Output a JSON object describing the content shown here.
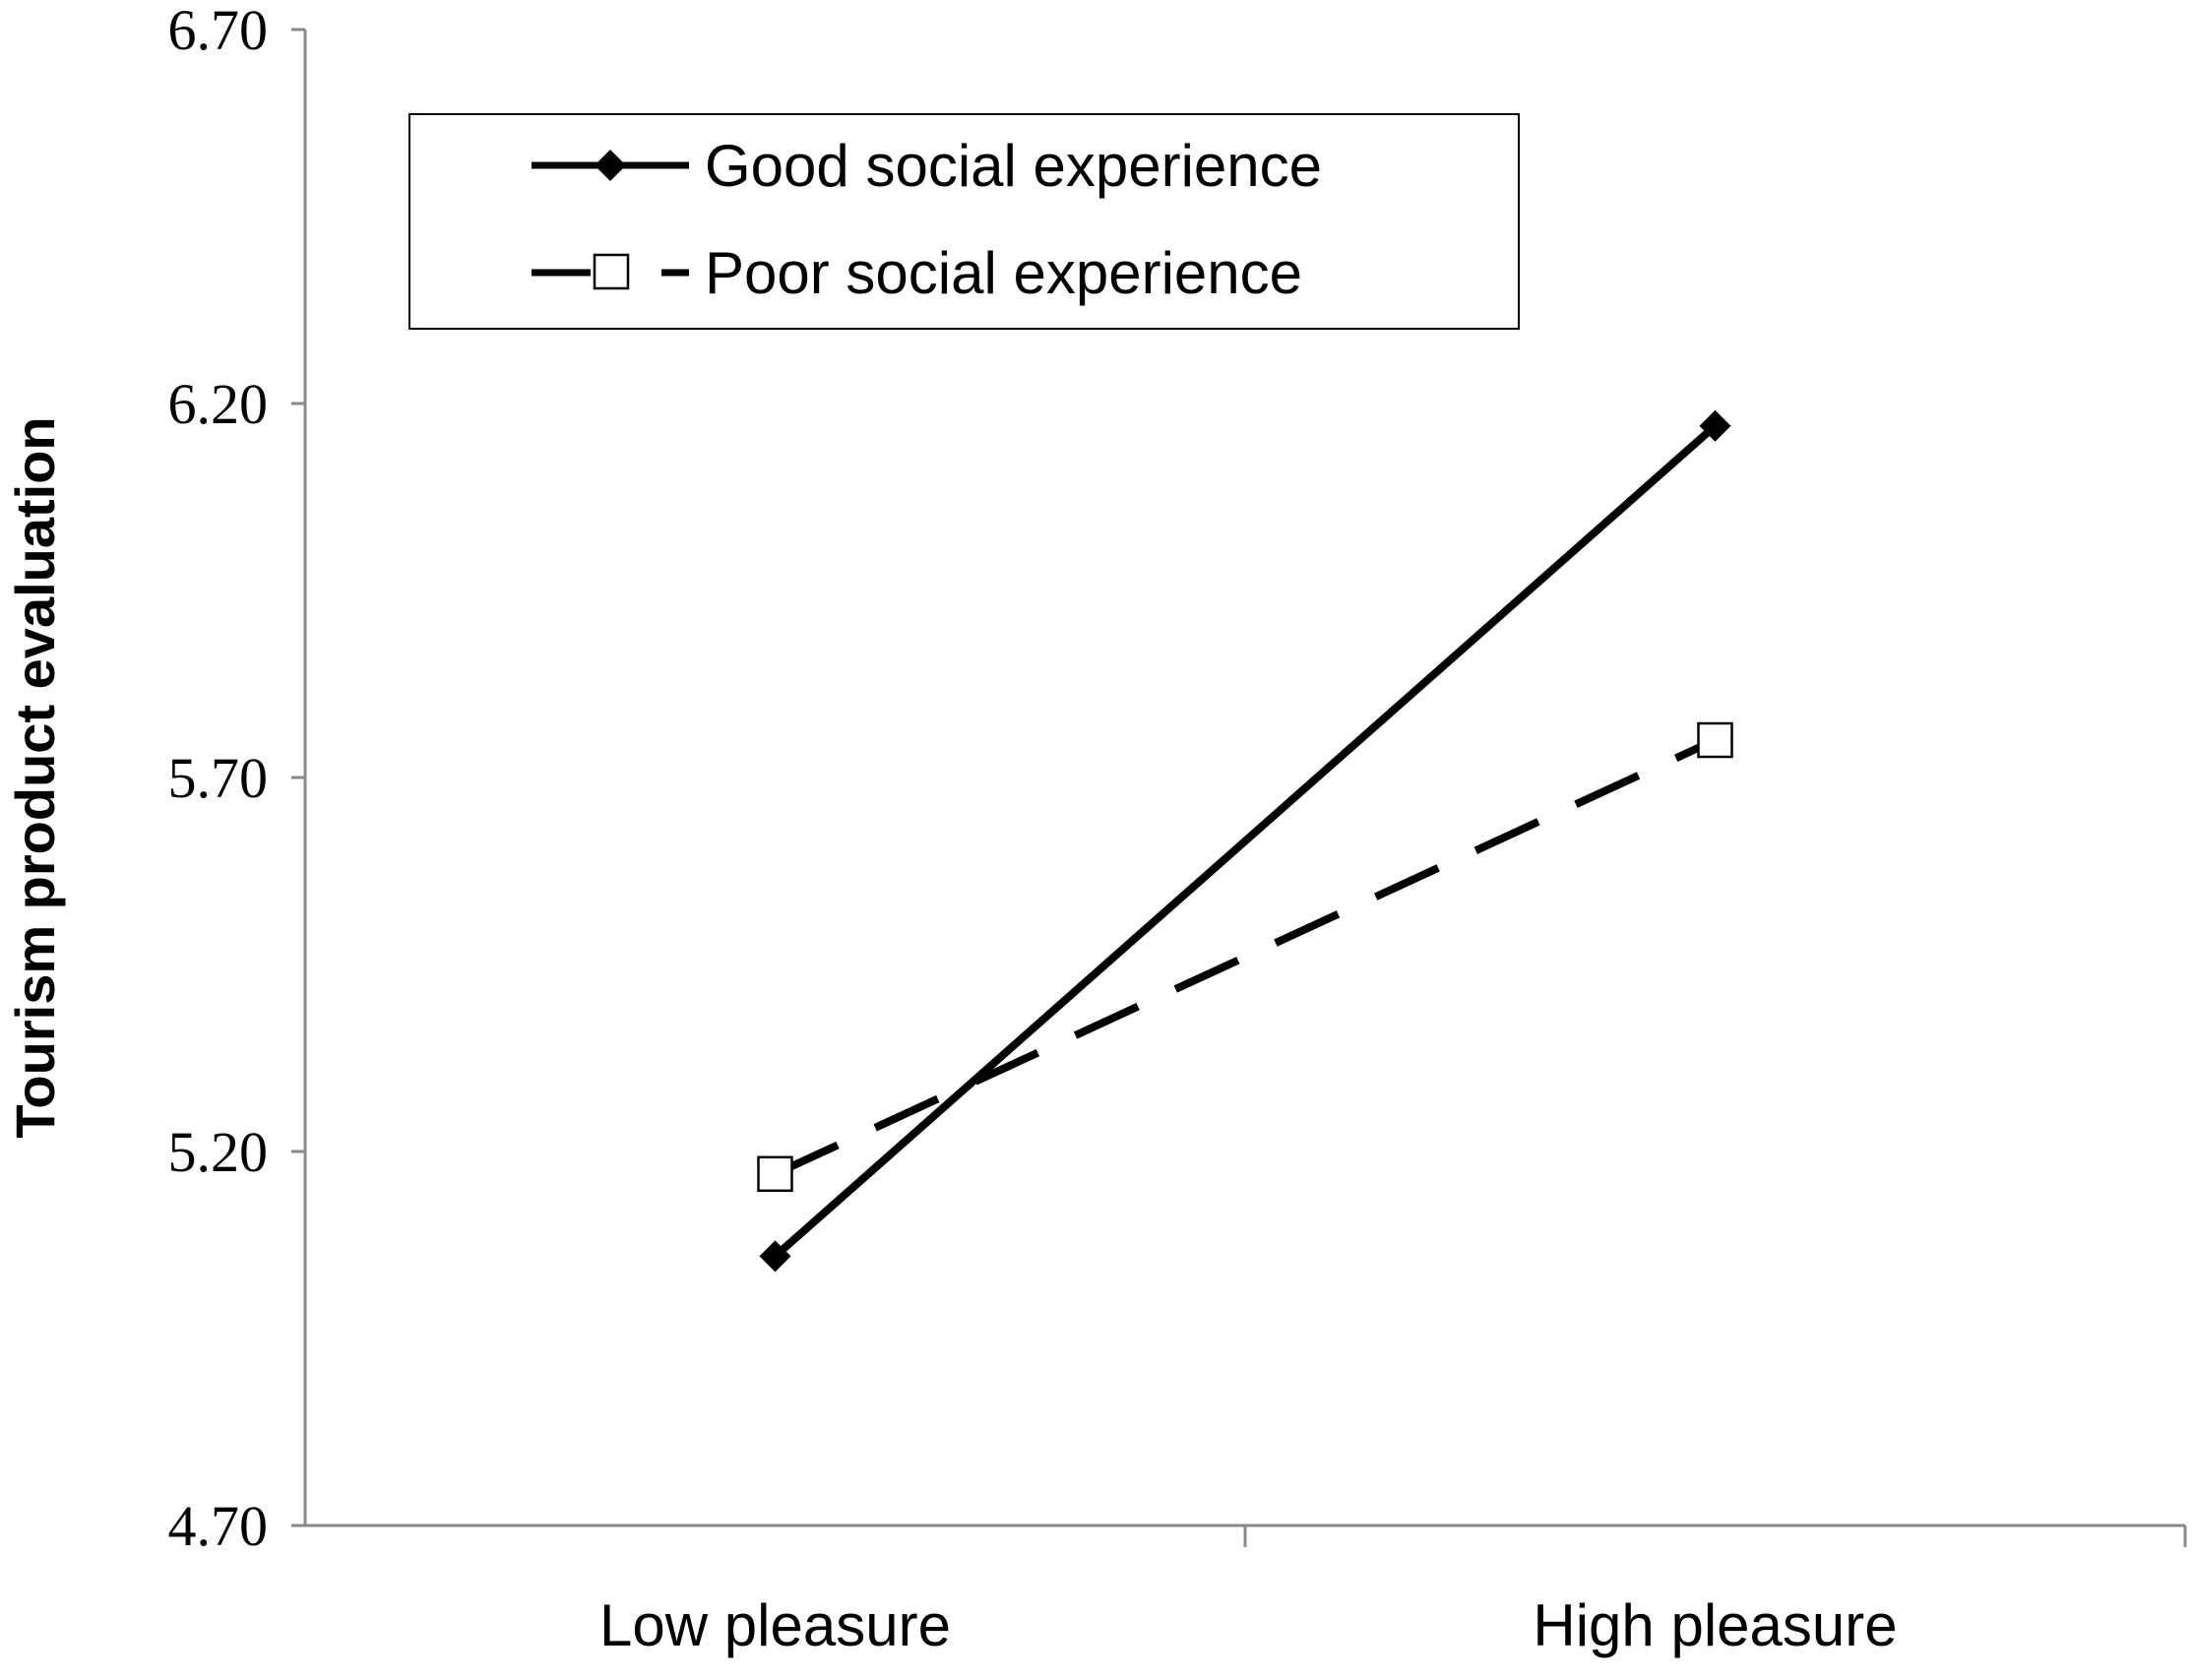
{
  "chart_data": {
    "type": "line",
    "categories": [
      "Low pleasure",
      "High pleasure"
    ],
    "ylabel": "Tourism product evaluation",
    "xlabel": "",
    "ylim": [
      4.7,
      6.7
    ],
    "yticks": [
      "4.70",
      "5.20",
      "5.70",
      "6.20",
      "6.70"
    ],
    "ytick_values": [
      4.7,
      5.2,
      5.7,
      6.2,
      6.7
    ],
    "grid": false,
    "legend_position": "top-left",
    "series": [
      {
        "name": "Good social experience",
        "values": [
          5.06,
          6.17
        ],
        "line": "solid",
        "marker": "diamond-filled",
        "color": "#000000"
      },
      {
        "name": "Poor social experience",
        "values": [
          5.17,
          5.75
        ],
        "line": "dashed",
        "marker": "square-open",
        "color": "#000000"
      }
    ]
  }
}
